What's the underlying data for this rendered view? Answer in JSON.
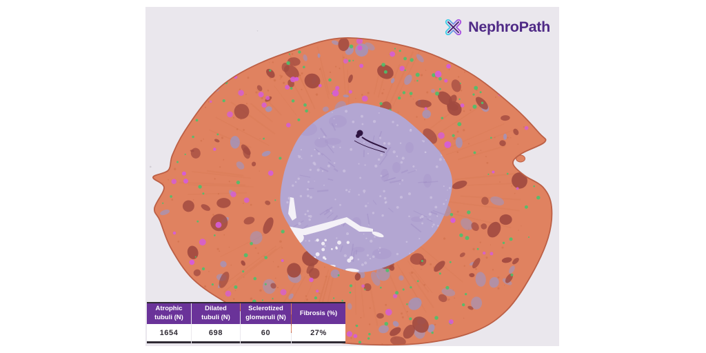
{
  "logo": {
    "brand_name": "NephroPath",
    "text_color": "#4f2a86",
    "icon_color_left": "#3fd0e8",
    "icon_color_right": "#a94fe0",
    "icon_core_color": "#4b2276"
  },
  "metrics_table": {
    "header_bg": "#6a3399",
    "header_text_color": "#ffffff",
    "value_text_color": "#2f2a33",
    "frame_color": "#2f2a33",
    "columns": [
      {
        "label_line1": "Atrophic",
        "label_line2": "tubuli (N)",
        "value": "1654"
      },
      {
        "label_line1": "Dilated",
        "label_line2": "tubuli (N)",
        "value": "698"
      },
      {
        "label_line1": "Sclerotized",
        "label_line2": "glomeruli (N)",
        "value": "60"
      },
      {
        "label_line1": "Fibrosis (%)",
        "label_line2": "",
        "value": "27%"
      }
    ]
  },
  "histology": {
    "slide_background": "#eae7ed",
    "cortex_fill": "#e08260",
    "cortex_edge": "#bc5f45",
    "patch_dark_red": "#a14a40",
    "patch_lavender": "#9f95c1",
    "dot_magenta": "#d55cd8",
    "dot_green": "#4cc06c",
    "speck_dark_orange": "#c4673f",
    "streak_orange": "#cf7048",
    "medulla_fill": "#b3a6d2",
    "medulla_light_speck": "#d6cce6",
    "medulla_dark_streak": "#9a86c2",
    "pelvis_white": "#f4f1f7",
    "ink_mark": "#2e1440",
    "dust": "#b9b4bd"
  }
}
